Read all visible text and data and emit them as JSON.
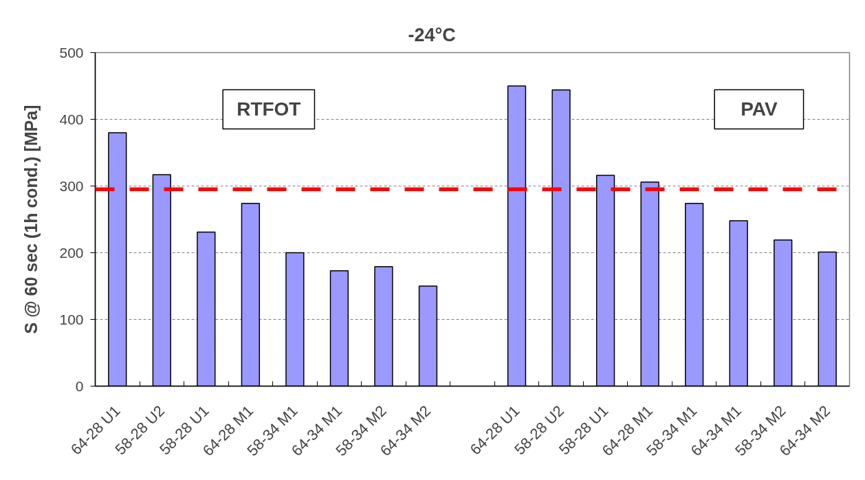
{
  "chart_data": {
    "type": "bar",
    "title": "-24°C",
    "ylabel": "S @ 60 sec (1h cond.) [MPa]",
    "categories": [
      "64-28 U1",
      "58-28 U2",
      "58-28 U1",
      "64-28 M1",
      "58-34 M1",
      "64-34 M1",
      "58-34 M2",
      "64-34 M2",
      null,
      "64-28 U1",
      "58-28 U2",
      "58-28 U1",
      "64-28 M1",
      "58-34 M1",
      "64-34 M1",
      "58-34 M2",
      "64-34 M2"
    ],
    "values": [
      380,
      317,
      231,
      274,
      200,
      173,
      179,
      150,
      null,
      450,
      444,
      316,
      306,
      274,
      248,
      219,
      201
    ],
    "color": "#9999ff",
    "ylim": [
      0,
      500
    ],
    "yticks": [
      0,
      100,
      200,
      300,
      400,
      500
    ],
    "grid": "y",
    "ref_lines": [
      {
        "axis": "y",
        "value": 295,
        "color": "#ff0000",
        "line_style": "dashed"
      }
    ],
    "annotations": [
      "RTFOT",
      "PAV"
    ]
  }
}
